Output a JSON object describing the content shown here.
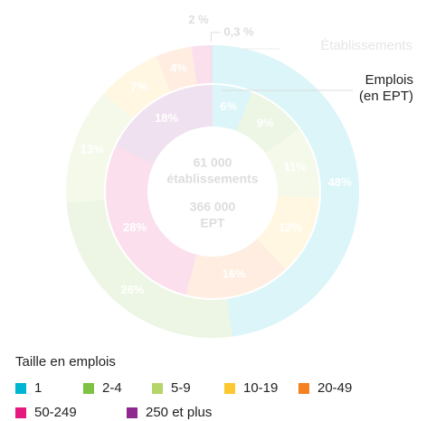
{
  "chart_data": {
    "type": "donut",
    "categories": [
      "1",
      "2-4",
      "5-9",
      "10-19",
      "20-49",
      "50-249",
      "250 et plus"
    ],
    "colors": [
      "#00b5d1",
      "#7dc242",
      "#b5d56a",
      "#fdc82f",
      "#f58220",
      "#e5197e",
      "#8e278f"
    ],
    "series": [
      {
        "name": "Établissements",
        "values": [
          48,
          26,
          13,
          7,
          4,
          2,
          0.3
        ],
        "value_labels": [
          "48%",
          "26%",
          "13%",
          "7%",
          "4%",
          "2 %",
          "0,3 %"
        ]
      },
      {
        "name": "Emplois (en EPT)",
        "values": [
          6,
          9,
          11,
          12,
          16,
          28,
          18
        ],
        "value_labels": [
          "6%",
          "9%",
          "11%",
          "12%",
          "16%",
          "28%",
          "18%"
        ]
      }
    ],
    "center_labels": [
      "61 000",
      "établissements",
      "366 000",
      "EPT"
    ],
    "legend_title": "Taille en emplois"
  }
}
